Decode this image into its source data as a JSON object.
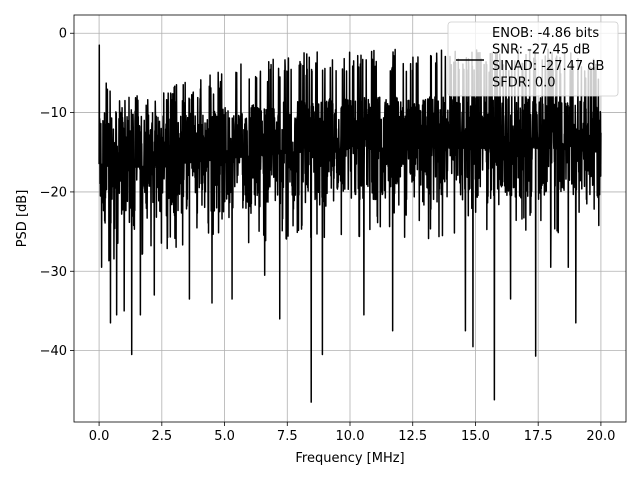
{
  "chart_data": {
    "type": "line",
    "title": "",
    "xlabel": "Frequency [MHz]",
    "ylabel": "PSD [dB]",
    "xlim": [
      -1,
      21
    ],
    "ylim": [
      -49,
      2.3
    ],
    "x_ticks": [
      0.0,
      2.5,
      5.0,
      7.5,
      10.0,
      12.5,
      15.0,
      17.5,
      20.0
    ],
    "x_tick_labels": [
      "0.0",
      "2.5",
      "5.0",
      "7.5",
      "10.0",
      "12.5",
      "15.0",
      "17.5",
      "20.0"
    ],
    "y_ticks": [
      0,
      -10,
      -20,
      -30,
      -40
    ],
    "y_tick_labels": [
      "0",
      "−10",
      "−20",
      "−30",
      "−40"
    ],
    "grid": true,
    "legend": {
      "placement": "top-right",
      "entries": [
        "ENOB: -4.86 bits\nSNR: -27.45 dB\nSINAD: -27.47 dB\nSFDR: 0.0"
      ]
    },
    "series": [
      {
        "color": "#000000",
        "x_range": [
          0,
          20
        ],
        "upper_envelope": {
          "x": [
            0,
            0.5,
            1,
            2,
            3,
            4,
            5,
            6,
            7,
            8,
            10,
            12,
            14,
            16,
            18,
            20
          ],
          "y": [
            -1.5,
            -7,
            -7.5,
            -8,
            -6.5,
            -5.5,
            -4.5,
            -3.5,
            -3,
            -2.5,
            -2,
            -2,
            -2,
            -2,
            -2,
            -3
          ]
        },
        "band": {
          "x": [
            0,
            1,
            3,
            6,
            10,
            14,
            18,
            20
          ],
          "y_high": [
            -9,
            -10,
            -10,
            -9,
            -8,
            -8,
            -8,
            -9
          ],
          "y_low": [
            -24,
            -24,
            -23,
            -22,
            -21,
            -21,
            -21,
            -21
          ]
        },
        "deep_dips": [
          {
            "x": 0.1,
            "y": -29.5
          },
          {
            "x": 0.45,
            "y": -36.5
          },
          {
            "x": 0.7,
            "y": -35.5
          },
          {
            "x": 1.0,
            "y": -35
          },
          {
            "x": 1.3,
            "y": -40.5
          },
          {
            "x": 1.65,
            "y": -35.5
          },
          {
            "x": 2.2,
            "y": -33
          },
          {
            "x": 3.6,
            "y": -33.5
          },
          {
            "x": 4.5,
            "y": -34
          },
          {
            "x": 5.3,
            "y": -33.5
          },
          {
            "x": 6.6,
            "y": -30.5
          },
          {
            "x": 7.2,
            "y": -36
          },
          {
            "x": 8.45,
            "y": -46.5
          },
          {
            "x": 8.9,
            "y": -40.5
          },
          {
            "x": 10.55,
            "y": -35.5
          },
          {
            "x": 11.7,
            "y": -37.5
          },
          {
            "x": 14.6,
            "y": -37.5
          },
          {
            "x": 14.9,
            "y": -39.5
          },
          {
            "x": 15.75,
            "y": -46.2
          },
          {
            "x": 16.4,
            "y": -33.5
          },
          {
            "x": 17.4,
            "y": -40.7
          },
          {
            "x": 18.0,
            "y": -29.5
          },
          {
            "x": 18.7,
            "y": -29.5
          },
          {
            "x": 19.0,
            "y": -36.5
          }
        ]
      }
    ]
  }
}
